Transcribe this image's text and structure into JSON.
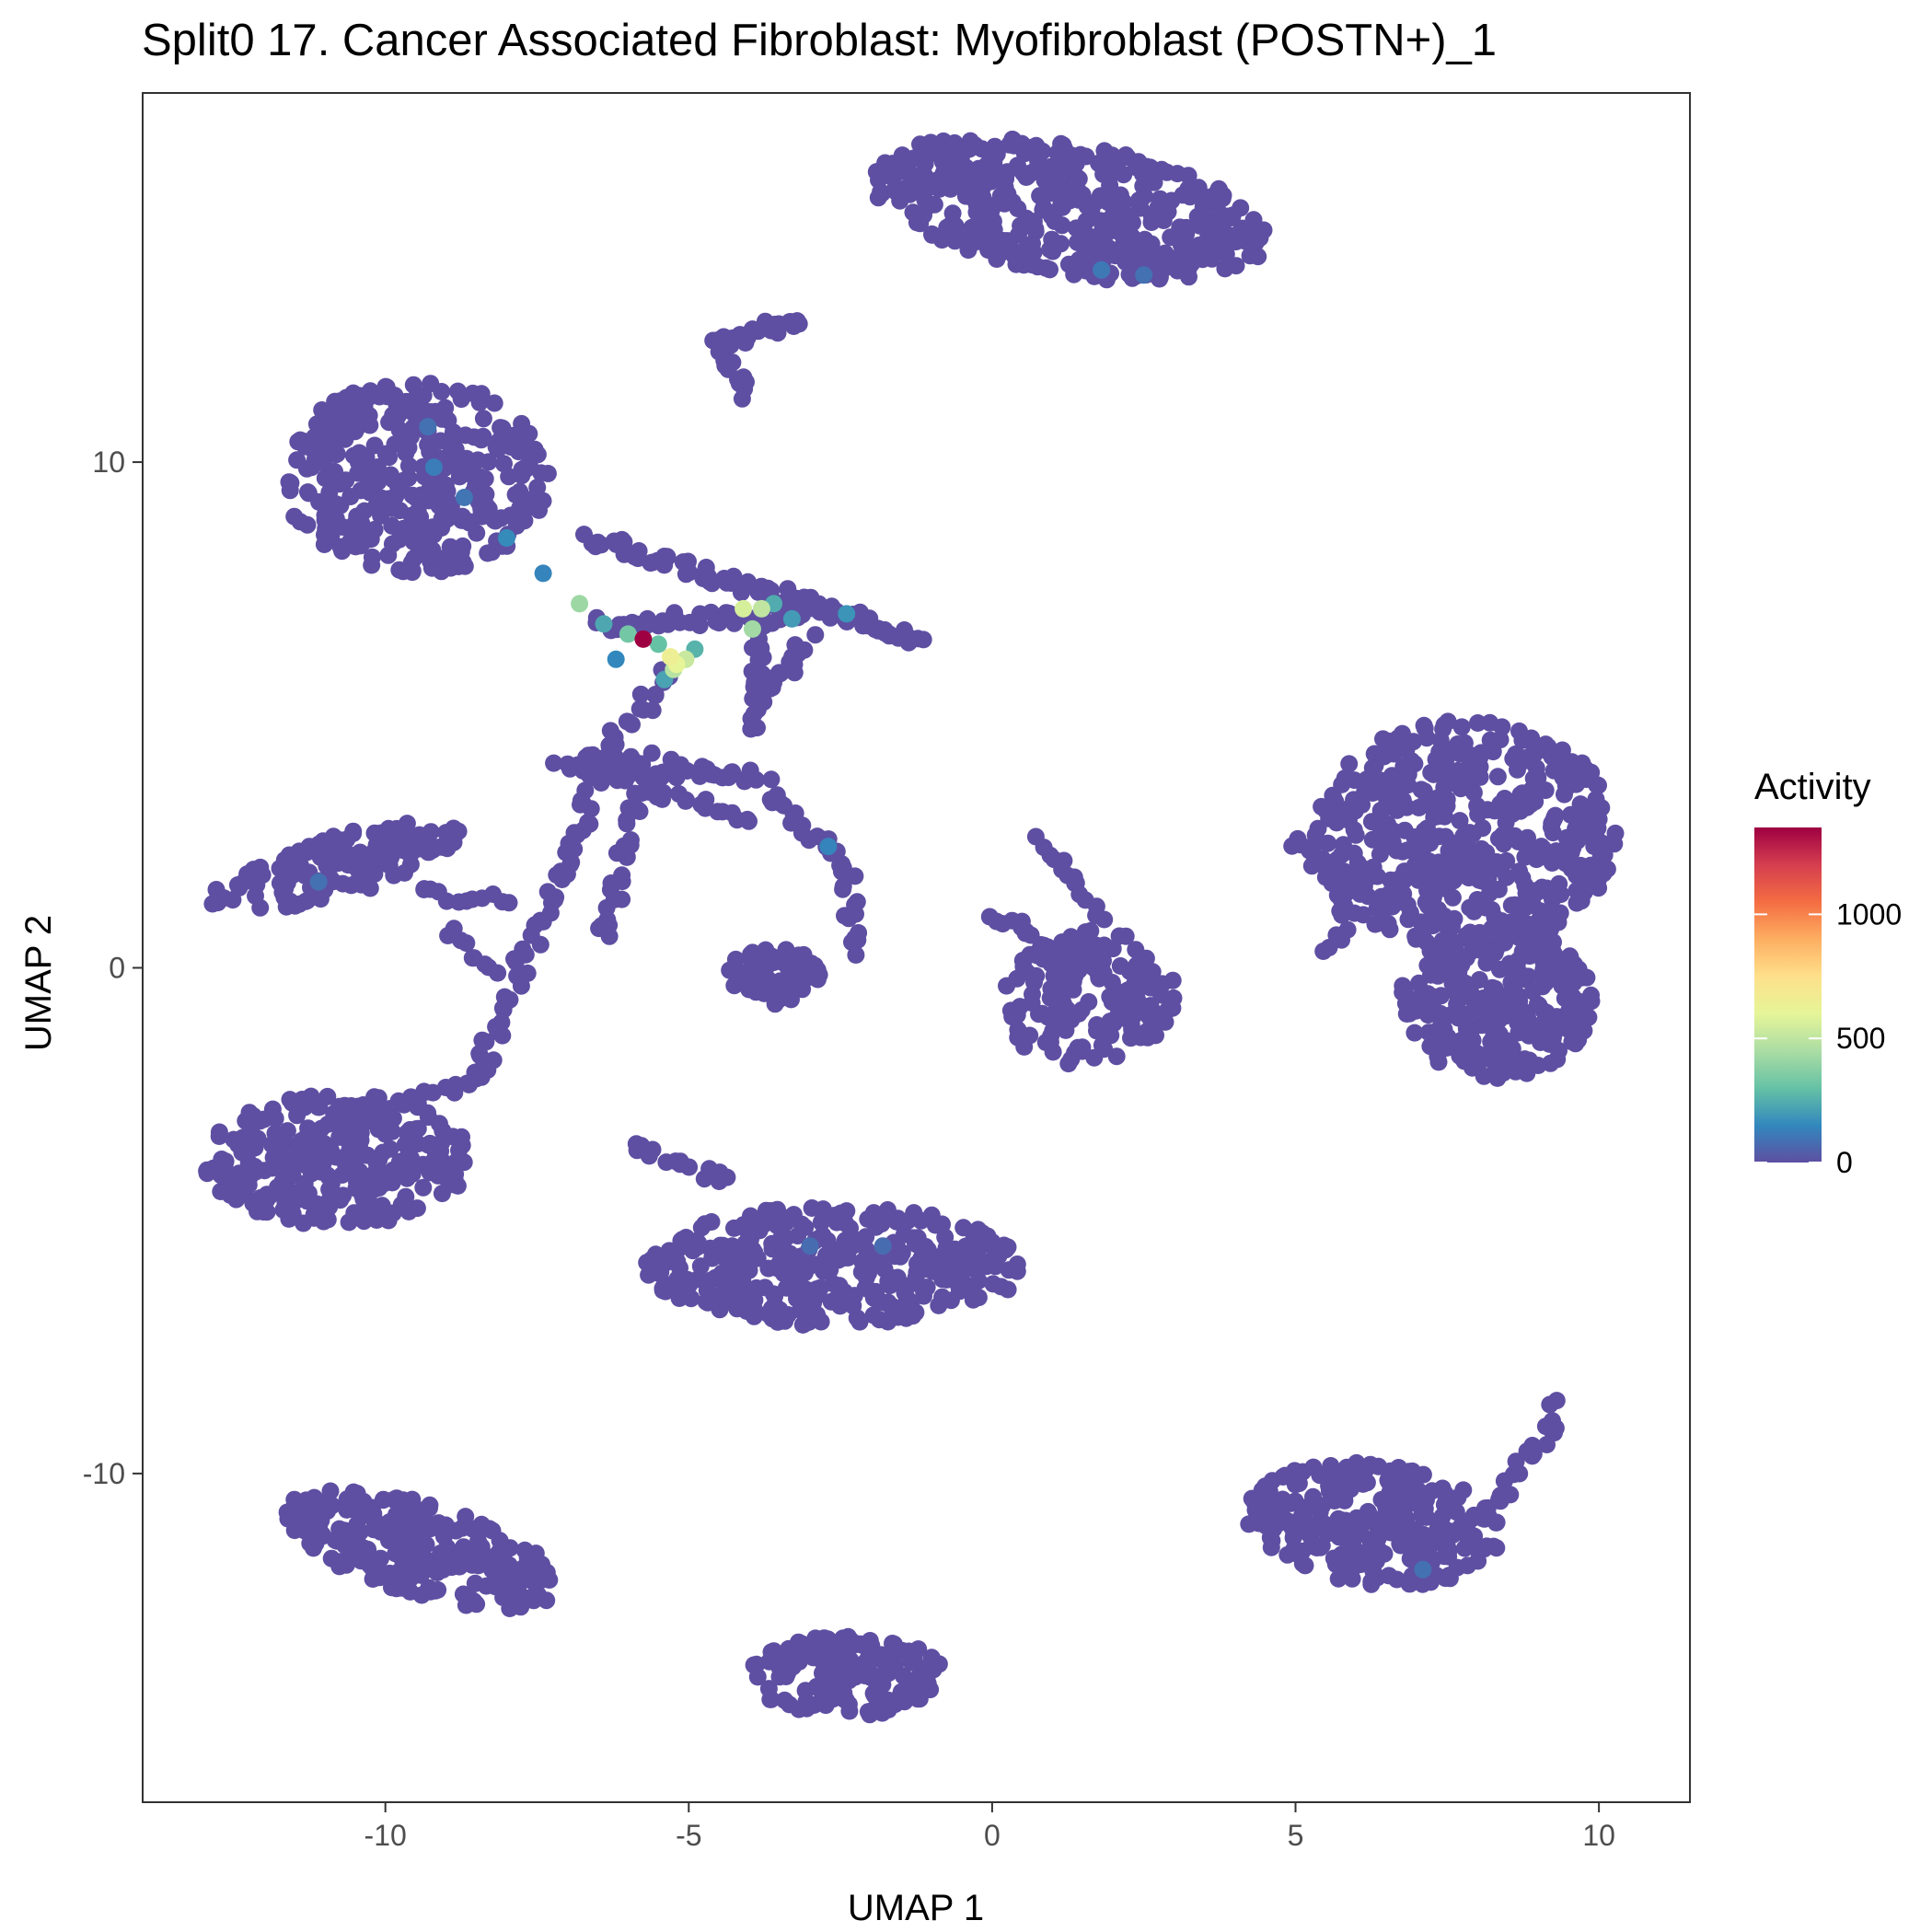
{
  "chart_data": {
    "type": "scatter",
    "title": "Split0 17. Cancer Associated Fibroblast: Myofibroblast (POSTN+)_1",
    "xlabel": "UMAP 1",
    "ylabel": "UMAP 2",
    "xlim": [
      -14,
      11.5
    ],
    "ylim": [
      -16.5,
      17.3
    ],
    "x_ticks": [
      -10,
      -5,
      0,
      5,
      10
    ],
    "x_tick_labels": [
      "-10",
      "-5",
      "0",
      "5",
      "10"
    ],
    "y_ticks": [
      -10,
      0,
      10
    ],
    "y_tick_labels": [
      "-10",
      "0",
      "10"
    ],
    "grid": false,
    "legend": {
      "title": "Activity",
      "placement": "right",
      "range": [
        0,
        1350
      ],
      "ticks": [
        0,
        500,
        1000
      ],
      "tick_labels": [
        "0",
        "500",
        "1000"
      ],
      "colors": [
        "#5E4FA2",
        "#3288BD",
        "#66C2A5",
        "#ABDDA4",
        "#E6F598",
        "#FEE08B",
        "#FDAE61",
        "#F46D43",
        "#D53E4F",
        "#9E0142"
      ]
    },
    "base_color": "#5E4FA2",
    "clusters": [
      {
        "shape": "ellipse",
        "cx": 1.3,
        "cy": 15.0,
        "rx": 3.3,
        "ry": 1.3,
        "rot": -12,
        "n": 420
      },
      {
        "shape": "ellipse",
        "cx": -9.5,
        "cy": 9.7,
        "rx": 2.2,
        "ry": 1.9,
        "rot": 0,
        "n": 360
      },
      {
        "shape": "ellipse",
        "cx": 7.8,
        "cy": 2.6,
        "rx": 2.5,
        "ry": 2.3,
        "rot": 0,
        "n": 500
      },
      {
        "shape": "ellipse",
        "cx": 8.3,
        "cy": -0.7,
        "rx": 1.6,
        "ry": 1.5,
        "rot": 0,
        "n": 260
      },
      {
        "shape": "ellipse",
        "cx": 1.6,
        "cy": -0.6,
        "rx": 1.5,
        "ry": 1.3,
        "rot": 25,
        "n": 160
      },
      {
        "shape": "ellipse",
        "cx": -10.8,
        "cy": -3.8,
        "rx": 2.2,
        "ry": 1.3,
        "rot": 0,
        "n": 280
      },
      {
        "shape": "ellipse",
        "cx": -2.6,
        "cy": -5.9,
        "rx": 3.1,
        "ry": 1.2,
        "rot": 0,
        "n": 340
      },
      {
        "shape": "ellipse",
        "cx": -9.4,
        "cy": -11.5,
        "rx": 2.4,
        "ry": 0.9,
        "rot": -20,
        "n": 240
      },
      {
        "shape": "ellipse",
        "cx": -2.4,
        "cy": -14.0,
        "rx": 1.6,
        "ry": 0.8,
        "rot": 0,
        "n": 160
      },
      {
        "shape": "ellipse",
        "cx": 6.3,
        "cy": -11.0,
        "rx": 2.1,
        "ry": 1.2,
        "rot": -10,
        "n": 260
      },
      {
        "shape": "ellipse",
        "cx": -10.8,
        "cy": 2.0,
        "rx": 2.2,
        "ry": 0.6,
        "rot": 18,
        "n": 150
      },
      {
        "shape": "ellipse",
        "cx": -3.6,
        "cy": -0.2,
        "rx": 0.8,
        "ry": 0.6,
        "rot": 0,
        "n": 60
      },
      {
        "shape": "ellipse",
        "cx": -6.0,
        "cy": 4.0,
        "rx": 0.9,
        "ry": 0.3,
        "rot": 0,
        "n": 40
      },
      {
        "shape": "line",
        "x1": -1.8,
        "y1": 15.3,
        "x2": 0.0,
        "y2": 15.8,
        "n": 30
      },
      {
        "shape": "line",
        "x1": -4.5,
        "y1": 12.3,
        "x2": -3.1,
        "y2": 12.9,
        "n": 25
      },
      {
        "shape": "line",
        "x1": -4.5,
        "y1": 12.3,
        "x2": -4.0,
        "y2": 11.3,
        "n": 12
      },
      {
        "shape": "line",
        "x1": -6.6,
        "y1": 8.5,
        "x2": -1.2,
        "y2": 6.5,
        "n": 90
      },
      {
        "shape": "line",
        "x1": -6.6,
        "y1": 6.8,
        "x2": -3.0,
        "y2": 7.0,
        "n": 40
      },
      {
        "shape": "line",
        "x1": -3.8,
        "y1": 6.8,
        "x2": -3.9,
        "y2": 4.7,
        "n": 20
      },
      {
        "shape": "line",
        "x1": -3.0,
        "y1": 6.5,
        "x2": -3.7,
        "y2": 5.5,
        "n": 14
      },
      {
        "shape": "line",
        "x1": -7.2,
        "y1": 4.0,
        "x2": -3.7,
        "y2": 3.8,
        "n": 40
      },
      {
        "shape": "line",
        "x1": -5.3,
        "y1": 5.8,
        "x2": -6.5,
        "y2": 4.2,
        "n": 18
      },
      {
        "shape": "line",
        "x1": -6.5,
        "y1": 3.8,
        "x2": -8.5,
        "y2": -2.2,
        "n": 60
      },
      {
        "shape": "line",
        "x1": -5.8,
        "y1": 3.5,
        "x2": -6.4,
        "y2": 0.6,
        "n": 25
      },
      {
        "shape": "line",
        "x1": -5.8,
        "y1": 3.5,
        "x2": -4.0,
        "y2": 3.0,
        "n": 18
      },
      {
        "shape": "line",
        "x1": -3.7,
        "y1": 3.4,
        "x2": -2.4,
        "y2": 2.0,
        "n": 20
      },
      {
        "shape": "line",
        "x1": -2.4,
        "y1": 2.0,
        "x2": -2.3,
        "y2": 0.3,
        "n": 15
      },
      {
        "shape": "line",
        "x1": -8.5,
        "y1": -2.2,
        "x2": -10.5,
        "y2": -3.0,
        "n": 20
      },
      {
        "shape": "line",
        "x1": -9.5,
        "y1": 1.5,
        "x2": -8.0,
        "y2": 1.3,
        "n": 12
      },
      {
        "shape": "line",
        "x1": -9.0,
        "y1": 0.8,
        "x2": -8.2,
        "y2": -0.1,
        "n": 10
      },
      {
        "shape": "line",
        "x1": 0.8,
        "y1": 2.5,
        "x2": 1.8,
        "y2": 1.0,
        "n": 15
      },
      {
        "shape": "line",
        "x1": 0.0,
        "y1": 1.0,
        "x2": 1.2,
        "y2": 0.2,
        "n": 15
      },
      {
        "shape": "line",
        "x1": 4.9,
        "y1": 2.5,
        "x2": 6.0,
        "y2": 1.5,
        "n": 15
      },
      {
        "shape": "line",
        "x1": 6.0,
        "y1": 1.5,
        "x2": 5.5,
        "y2": 0.3,
        "n": 10
      },
      {
        "shape": "line",
        "x1": -6.0,
        "y1": -3.5,
        "x2": -4.3,
        "y2": -4.2,
        "n": 15
      },
      {
        "shape": "line",
        "x1": -0.6,
        "y1": -5.9,
        "x2": -0.2,
        "y2": -5.9,
        "n": 6
      },
      {
        "shape": "line",
        "x1": -11.2,
        "y1": -11.0,
        "x2": -10.3,
        "y2": -11.5,
        "n": 8
      },
      {
        "shape": "line",
        "x1": 8.2,
        "y1": -10.7,
        "x2": 9.2,
        "y2": -9.2,
        "n": 16
      },
      {
        "shape": "line",
        "x1": 9.2,
        "y1": -9.2,
        "x2": 9.3,
        "y2": -8.6,
        "n": 5
      },
      {
        "shape": "line",
        "x1": 5.0,
        "y1": -10.9,
        "x2": 4.3,
        "y2": -11.1,
        "n": 6
      }
    ],
    "highlight_points": [
      {
        "x": -5.75,
        "y": 6.5,
        "value": 1350
      },
      {
        "x": -5.3,
        "y": 6.15,
        "value": 650
      },
      {
        "x": -5.2,
        "y": 6.0,
        "value": 600
      },
      {
        "x": -5.05,
        "y": 6.1,
        "value": 520
      },
      {
        "x": -5.25,
        "y": 5.9,
        "value": 480
      },
      {
        "x": -4.1,
        "y": 7.1,
        "value": 560
      },
      {
        "x": -3.8,
        "y": 7.1,
        "value": 500
      },
      {
        "x": -3.95,
        "y": 6.7,
        "value": 430
      },
      {
        "x": -6.8,
        "y": 7.2,
        "value": 420
      },
      {
        "x": -6.0,
        "y": 6.6,
        "value": 330
      },
      {
        "x": -5.5,
        "y": 6.4,
        "value": 300
      },
      {
        "x": -4.9,
        "y": 6.3,
        "value": 260
      },
      {
        "x": -3.6,
        "y": 7.2,
        "value": 240
      },
      {
        "x": -6.4,
        "y": 6.8,
        "value": 230
      },
      {
        "x": -5.4,
        "y": 5.7,
        "value": 220
      },
      {
        "x": -3.3,
        "y": 6.9,
        "value": 200
      },
      {
        "x": -2.4,
        "y": 7.0,
        "value": 180
      },
      {
        "x": -6.2,
        "y": 6.1,
        "value": 150
      },
      {
        "x": -8.0,
        "y": 8.5,
        "value": 160
      },
      {
        "x": -7.4,
        "y": 7.8,
        "value": 140
      },
      {
        "x": -9.2,
        "y": 9.9,
        "value": 120
      },
      {
        "x": -8.7,
        "y": 9.3,
        "value": 100
      },
      {
        "x": -9.3,
        "y": 10.7,
        "value": 90
      },
      {
        "x": 1.8,
        "y": 13.8,
        "value": 110
      },
      {
        "x": 2.5,
        "y": 13.7,
        "value": 90
      },
      {
        "x": -2.7,
        "y": 2.4,
        "value": 140
      },
      {
        "x": -11.1,
        "y": 1.7,
        "value": 90
      },
      {
        "x": 7.1,
        "y": -11.9,
        "value": 90
      },
      {
        "x": -3.0,
        "y": -5.5,
        "value": 80
      },
      {
        "x": -1.8,
        "y": -5.5,
        "value": 80
      }
    ]
  }
}
